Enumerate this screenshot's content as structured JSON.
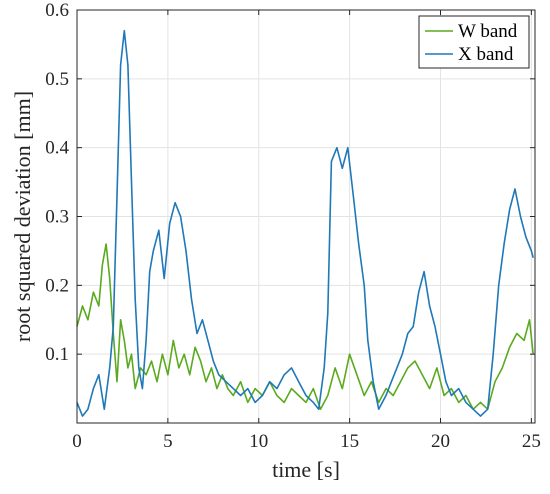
{
  "chart_data": {
    "type": "line",
    "title": "",
    "xlabel": "time [s]",
    "ylabel": "root squared deviation [mm]",
    "xlim": [
      0,
      25.2
    ],
    "ylim": [
      0,
      0.6
    ],
    "xticks": [
      0,
      5,
      10,
      15,
      20,
      25
    ],
    "xtick_labels": [
      "0",
      "5",
      "10",
      "15",
      "20",
      "25"
    ],
    "yticks": [
      0.1,
      0.2,
      0.3,
      0.4,
      0.5,
      0.6
    ],
    "ytick_labels": [
      "0.1",
      "0.2",
      "0.3",
      "0.4",
      "0.5",
      "0.6"
    ],
    "grid": true,
    "legend_position": "top-right",
    "series": [
      {
        "name": "W band",
        "color": "#5aaa1e",
        "x": [
          0,
          0.3,
          0.6,
          0.9,
          1.2,
          1.4,
          1.6,
          1.8,
          2.0,
          2.2,
          2.4,
          2.6,
          2.8,
          3.0,
          3.2,
          3.5,
          3.8,
          4.1,
          4.4,
          4.7,
          5.0,
          5.3,
          5.6,
          5.9,
          6.2,
          6.5,
          6.8,
          7.1,
          7.4,
          7.7,
          8.0,
          8.3,
          8.6,
          9.0,
          9.4,
          9.8,
          10.2,
          10.6,
          11.0,
          11.4,
          11.8,
          12.2,
          12.6,
          13.0,
          13.4,
          13.8,
          14.2,
          14.6,
          15.0,
          15.4,
          15.8,
          16.2,
          16.6,
          17.0,
          17.4,
          17.8,
          18.2,
          18.6,
          19.0,
          19.4,
          19.8,
          20.2,
          20.6,
          21.0,
          21.4,
          21.8,
          22.2,
          22.6,
          23.0,
          23.4,
          23.8,
          24.2,
          24.6,
          24.9,
          25.1
        ],
        "y": [
          0.14,
          0.17,
          0.15,
          0.19,
          0.17,
          0.23,
          0.26,
          0.21,
          0.13,
          0.06,
          0.15,
          0.12,
          0.08,
          0.1,
          0.05,
          0.08,
          0.07,
          0.09,
          0.06,
          0.1,
          0.07,
          0.12,
          0.08,
          0.1,
          0.07,
          0.11,
          0.09,
          0.06,
          0.08,
          0.05,
          0.07,
          0.05,
          0.04,
          0.06,
          0.03,
          0.05,
          0.04,
          0.06,
          0.04,
          0.03,
          0.05,
          0.04,
          0.03,
          0.05,
          0.02,
          0.04,
          0.08,
          0.05,
          0.1,
          0.07,
          0.04,
          0.06,
          0.03,
          0.05,
          0.04,
          0.06,
          0.08,
          0.09,
          0.07,
          0.05,
          0.08,
          0.04,
          0.05,
          0.03,
          0.04,
          0.02,
          0.03,
          0.02,
          0.06,
          0.08,
          0.11,
          0.13,
          0.12,
          0.15,
          0.1
        ]
      },
      {
        "name": "X band",
        "color": "#1f78b8",
        "x": [
          0,
          0.3,
          0.6,
          0.9,
          1.2,
          1.5,
          1.8,
          2.0,
          2.2,
          2.4,
          2.6,
          2.8,
          3.0,
          3.2,
          3.4,
          3.6,
          3.8,
          4.0,
          4.2,
          4.5,
          4.8,
          5.1,
          5.4,
          5.7,
          6.0,
          6.3,
          6.6,
          6.9,
          7.2,
          7.5,
          7.8,
          8.2,
          8.6,
          9.0,
          9.4,
          9.8,
          10.2,
          10.6,
          11.0,
          11.4,
          11.8,
          12.2,
          12.6,
          13.0,
          13.3,
          13.6,
          13.8,
          14.0,
          14.3,
          14.6,
          14.9,
          15.2,
          15.5,
          15.8,
          16.0,
          16.3,
          16.6,
          17.0,
          17.3,
          17.6,
          17.9,
          18.2,
          18.5,
          18.8,
          19.1,
          19.4,
          19.7,
          20.0,
          20.3,
          20.6,
          21.0,
          21.4,
          21.8,
          22.2,
          22.6,
          22.9,
          23.2,
          23.5,
          23.8,
          24.1,
          24.4,
          24.7,
          25.0,
          25.1
        ],
        "y": [
          0.03,
          0.01,
          0.02,
          0.05,
          0.07,
          0.02,
          0.08,
          0.14,
          0.33,
          0.52,
          0.57,
          0.52,
          0.35,
          0.18,
          0.08,
          0.05,
          0.12,
          0.22,
          0.25,
          0.28,
          0.21,
          0.29,
          0.32,
          0.3,
          0.25,
          0.18,
          0.13,
          0.15,
          0.12,
          0.09,
          0.07,
          0.06,
          0.05,
          0.04,
          0.05,
          0.03,
          0.04,
          0.06,
          0.05,
          0.07,
          0.08,
          0.06,
          0.04,
          0.03,
          0.02,
          0.08,
          0.16,
          0.38,
          0.4,
          0.37,
          0.4,
          0.33,
          0.26,
          0.2,
          0.12,
          0.06,
          0.02,
          0.04,
          0.06,
          0.08,
          0.1,
          0.13,
          0.14,
          0.19,
          0.22,
          0.17,
          0.14,
          0.1,
          0.06,
          0.04,
          0.05,
          0.03,
          0.02,
          0.01,
          0.02,
          0.1,
          0.2,
          0.26,
          0.31,
          0.34,
          0.3,
          0.27,
          0.25,
          0.24
        ]
      }
    ]
  }
}
